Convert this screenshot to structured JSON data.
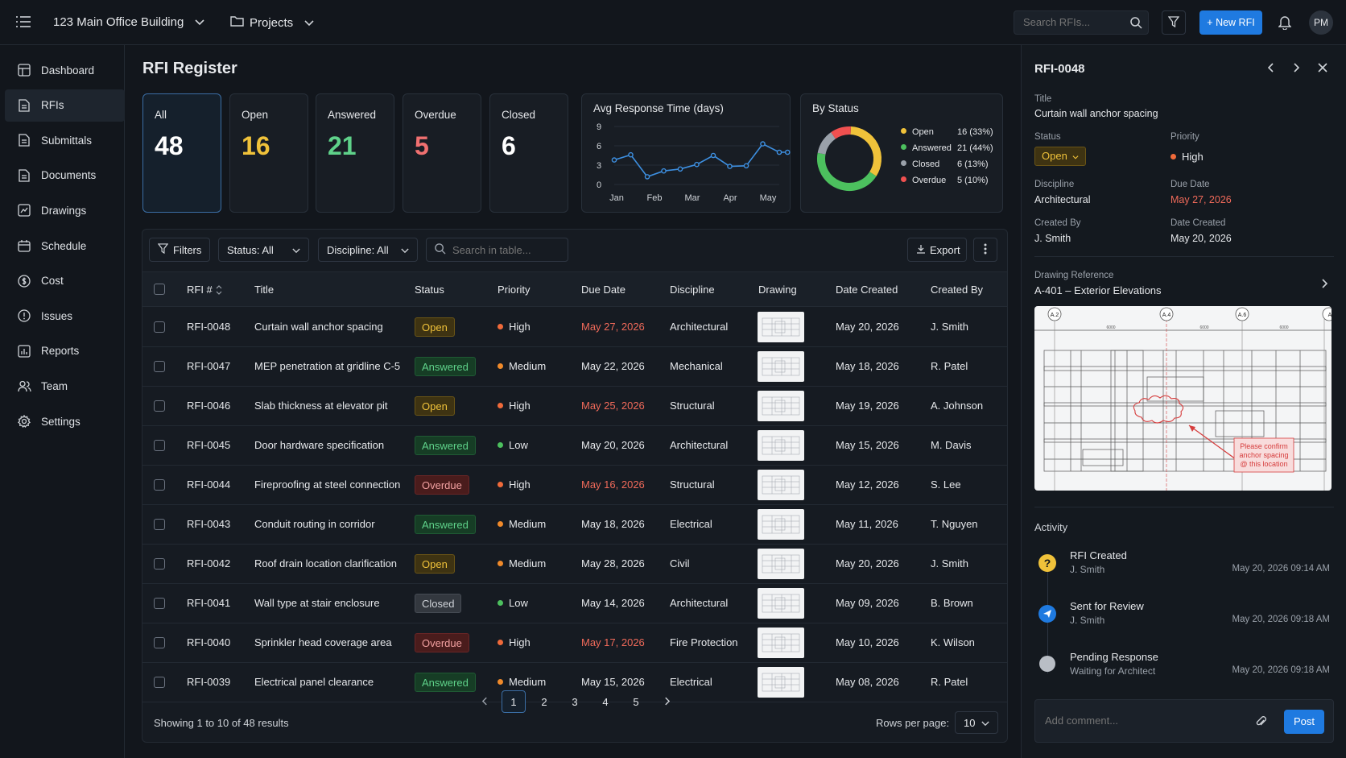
{
  "topbar": {
    "project": "123 Main Office Building",
    "projects_label": "Projects",
    "search_placeholder": "Search RFIs...",
    "new_button": "+ New RFI",
    "avatar": "PM"
  },
  "sidebar": {
    "items": [
      {
        "label": "Dashboard",
        "icon": "dashboard-icon"
      },
      {
        "label": "RFIs",
        "icon": "document-icon",
        "active": true
      },
      {
        "label": "Submittals",
        "icon": "document-icon"
      },
      {
        "label": "Documents",
        "icon": "document-icon"
      },
      {
        "label": "Drawings",
        "icon": "drawings-icon"
      },
      {
        "label": "Schedule",
        "icon": "calendar-icon"
      },
      {
        "label": "Cost",
        "icon": "dollar-icon"
      },
      {
        "label": "Issues",
        "icon": "alert-icon"
      },
      {
        "label": "Reports",
        "icon": "chart-icon"
      },
      {
        "label": "Team",
        "icon": "team-icon"
      },
      {
        "label": "Settings",
        "icon": "gear-icon"
      }
    ]
  },
  "page_title": "RFI Register",
  "stats": [
    {
      "label": "All",
      "value": "48",
      "color": "#ffffff"
    },
    {
      "label": "Open",
      "value": "16",
      "color": "#f0c23a"
    },
    {
      "label": "Answered",
      "value": "21",
      "color": "#5fd28a"
    },
    {
      "label": "Overdue",
      "value": "5",
      "color": "#f07070"
    },
    {
      "label": "Closed",
      "value": "6",
      "color": "#ffffff"
    }
  ],
  "chart_data": [
    {
      "type": "line",
      "title": "Avg Response Time (days)",
      "categories": [
        "Jan",
        "Feb",
        "Mar",
        "Apr",
        "May"
      ],
      "yticks": [
        "9",
        "6",
        "3",
        "0"
      ],
      "ylim": [
        0,
        9
      ],
      "x": [
        0,
        0.5,
        1,
        1.5,
        2,
        2.5,
        3,
        3.5,
        4,
        4.5,
        5,
        5.25
      ],
      "values": [
        3.8,
        4.6,
        1.2,
        2.1,
        2.4,
        3.1,
        4.5,
        2.8,
        2.9,
        6.3,
        5.0,
        5.0
      ],
      "line_color": "#3d8fe0"
    },
    {
      "type": "pie",
      "title": "By Status",
      "slices": [
        {
          "label": "Open",
          "value": 16,
          "display": "16 (33%)",
          "color": "#f0c23a"
        },
        {
          "label": "Answered",
          "value": 21,
          "display": "21 (44%)",
          "color": "#4cc05e"
        },
        {
          "label": "Closed",
          "value": 6,
          "display": "6 (13%)",
          "color": "#9aa1aa"
        },
        {
          "label": "Overdue",
          "value": 5,
          "display": "5 (10%)",
          "color": "#f05050"
        }
      ]
    }
  ],
  "toolbar": {
    "filters": "Filters",
    "status": "Status: All",
    "discipline": "Discipline: All",
    "search_placeholder": "Search in table...",
    "export": "Export"
  },
  "columns": [
    "RFI #",
    "Title",
    "Status",
    "Priority",
    "Due Date",
    "Discipline",
    "Drawing",
    "Date Created",
    "Created By"
  ],
  "rows": [
    {
      "id": "RFI-0048",
      "title": "Curtain wall anchor spacing",
      "status": "Open",
      "priority": "High",
      "due": "May 27, 2026",
      "due_overdue": true,
      "discipline": "Architectural",
      "created": "May 20, 2026",
      "by": "J. Smith"
    },
    {
      "id": "RFI-0047",
      "title": "MEP penetration at gridline C-5",
      "status": "Answered",
      "priority": "Medium",
      "due": "May 22, 2026",
      "due_overdue": false,
      "discipline": "Mechanical",
      "created": "May 18, 2026",
      "by": "R. Patel"
    },
    {
      "id": "RFI-0046",
      "title": "Slab thickness at elevator pit",
      "status": "Open",
      "priority": "High",
      "due": "May 25, 2026",
      "due_overdue": true,
      "discipline": "Structural",
      "created": "May 19, 2026",
      "by": "A. Johnson"
    },
    {
      "id": "RFI-0045",
      "title": "Door hardware specification",
      "status": "Answered",
      "priority": "Low",
      "due": "May 20, 2026",
      "due_overdue": false,
      "discipline": "Architectural",
      "created": "May 15, 2026",
      "by": "M. Davis"
    },
    {
      "id": "RFI-0044",
      "title": "Fireproofing at steel connection",
      "status": "Overdue",
      "priority": "High",
      "due": "May 16, 2026",
      "due_overdue": true,
      "discipline": "Structural",
      "created": "May 12, 2026",
      "by": "S. Lee"
    },
    {
      "id": "RFI-0043",
      "title": "Conduit routing in corridor",
      "status": "Answered",
      "priority": "Medium",
      "due": "May 18, 2026",
      "due_overdue": false,
      "discipline": "Electrical",
      "created": "May 11, 2026",
      "by": "T. Nguyen"
    },
    {
      "id": "RFI-0042",
      "title": "Roof drain location clarification",
      "status": "Open",
      "priority": "Medium",
      "due": "May 28, 2026",
      "due_overdue": false,
      "discipline": "Civil",
      "created": "May 20, 2026",
      "by": "J. Smith"
    },
    {
      "id": "RFI-0041",
      "title": "Wall type at stair enclosure",
      "status": "Closed",
      "priority": "Low",
      "due": "May 14, 2026",
      "due_overdue": false,
      "discipline": "Architectural",
      "created": "May 09, 2026",
      "by": "B. Brown"
    },
    {
      "id": "RFI-0040",
      "title": "Sprinkler head coverage area",
      "status": "Overdue",
      "priority": "High",
      "due": "May 17, 2026",
      "due_overdue": true,
      "discipline": "Fire Protection",
      "created": "May 10, 2026",
      "by": "K. Wilson"
    },
    {
      "id": "RFI-0039",
      "title": "Electrical panel clearance",
      "status": "Answered",
      "priority": "Medium",
      "due": "May 15, 2026",
      "due_overdue": false,
      "discipline": "Electrical",
      "created": "May 08, 2026",
      "by": "R. Patel"
    }
  ],
  "pager": {
    "summary": "Showing 1 to 10 of 48 results",
    "pages": [
      "1",
      "2",
      "3",
      "4",
      "5"
    ],
    "rows_label": "Rows per page:",
    "rows_value": "10"
  },
  "detail": {
    "id": "RFI-0048",
    "title_label": "Title",
    "title": "Curtain wall anchor spacing",
    "status_label": "Status",
    "status": "Open",
    "priority_label": "Priority",
    "priority": "High",
    "discipline_label": "Discipline",
    "discipline": "Architectural",
    "due_label": "Due Date",
    "due": "May 27, 2026",
    "createdby_label": "Created By",
    "createdby": "J. Smith",
    "datecreated_label": "Date Created",
    "datecreated": "May 20, 2026",
    "drawing_label": "Drawing Reference",
    "drawing": "A-401 – Exterior Elevations",
    "grid_labels": [
      "A.2",
      "A.4",
      "A.6",
      "A"
    ],
    "dim_labels": [
      "6000",
      "6000",
      "6000",
      "6000"
    ],
    "markup_note": [
      "Please confirm",
      "anchor spacing",
      "@ this location"
    ],
    "activity_label": "Activity",
    "activity": [
      {
        "title": "RFI Created",
        "sub": "J. Smith",
        "time": "May 20, 2026 09:14 AM",
        "icon": "question-icon"
      },
      {
        "title": "Sent for Review",
        "sub": "J. Smith",
        "time": "May 20, 2026 09:18 AM",
        "icon": "send-icon"
      },
      {
        "title": "Pending Response",
        "sub": "Waiting for Architect",
        "time": "May 20, 2026 09:18 AM",
        "icon": "pending-icon"
      }
    ],
    "comment_placeholder": "Add comment...",
    "post": "Post"
  }
}
